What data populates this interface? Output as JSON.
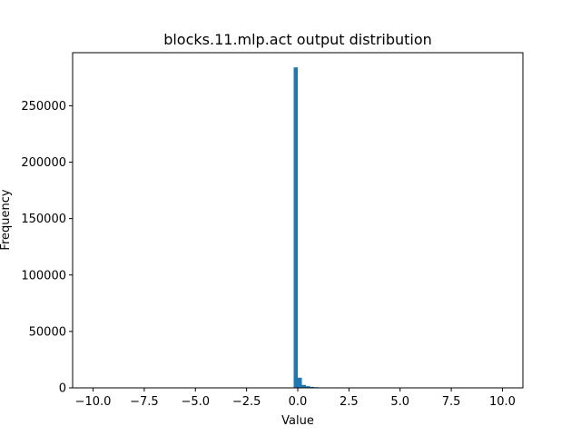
{
  "chart_data": {
    "type": "bar",
    "title": "blocks.11.mlp.act output distribution",
    "xlabel": "Value",
    "ylabel": "Frequency",
    "xlim": [
      -11.0,
      11.0
    ],
    "ylim": [
      0,
      297000
    ],
    "x_ticks": [
      -10.0,
      -7.5,
      -5.0,
      -2.5,
      0.0,
      2.5,
      5.0,
      7.5,
      10.0
    ],
    "x_tick_labels": [
      "−10.0",
      "−7.5",
      "−5.0",
      "−2.5",
      "0.0",
      "2.5",
      "5.0",
      "7.5",
      "10.0"
    ],
    "y_ticks": [
      0,
      50000,
      100000,
      150000,
      200000,
      250000
    ],
    "y_tick_labels": [
      "0",
      "50000",
      "100000",
      "150000",
      "200000",
      "250000"
    ],
    "bin_width": 0.2,
    "bins": [
      {
        "x": -0.2,
        "count": 284000
      },
      {
        "x": 0.0,
        "count": 9000
      },
      {
        "x": 0.2,
        "count": 2600
      },
      {
        "x": 0.4,
        "count": 1500
      },
      {
        "x": 0.6,
        "count": 900
      },
      {
        "x": 0.8,
        "count": 600
      },
      {
        "x": 1.0,
        "count": 400
      },
      {
        "x": 1.2,
        "count": 200
      },
      {
        "x": 1.4,
        "count": 100
      }
    ],
    "color": "#1f77b4",
    "grid": false,
    "legend": "none"
  }
}
